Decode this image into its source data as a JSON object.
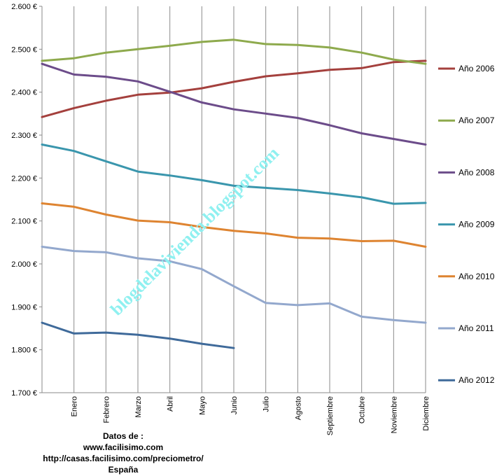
{
  "chart_data": {
    "type": "line",
    "categories": [
      "",
      "Enero",
      "Febrero",
      "Marzo",
      "Abril",
      "Mayo",
      "Junio",
      "Julio",
      "Agosto",
      "Septiembre",
      "Octubre",
      "Noviembre",
      "Diciembre"
    ],
    "y_ticks": [
      "1.700 €",
      "1.800 €",
      "1.900 €",
      "2.000 €",
      "2.100 €",
      "2.200 €",
      "2.300 €",
      "2.400 €",
      "2.500 €",
      "2.600 €"
    ],
    "ylim": [
      1700,
      2600
    ],
    "grid": "vertical",
    "legend_position": "right",
    "series": [
      {
        "name": "Año 2006",
        "color": "#a4403d",
        "values": [
          2342,
          2363,
          2380,
          2394,
          2399,
          2409,
          2424,
          2437,
          2444,
          2452,
          2456,
          2470,
          2473
        ]
      },
      {
        "name": "Año 2007",
        "color": "#8eaa4d",
        "values": [
          2473,
          2479,
          2492,
          2500,
          2508,
          2517,
          2522,
          2512,
          2510,
          2504,
          2492,
          2476,
          2466
        ]
      },
      {
        "name": "Año 2008",
        "color": "#6c4c8a",
        "values": [
          2466,
          2441,
          2436,
          2425,
          2401,
          2376,
          2360,
          2350,
          2340,
          2323,
          2304,
          2291,
          2278
        ]
      },
      {
        "name": "Año 2009",
        "color": "#3a96ad",
        "values": [
          2278,
          2263,
          2239,
          2215,
          2206,
          2195,
          2182,
          2177,
          2172,
          2164,
          2155,
          2140,
          2142
        ]
      },
      {
        "name": "Año 2010",
        "color": "#de8431",
        "values": [
          2141,
          2133,
          2115,
          2101,
          2097,
          2086,
          2077,
          2071,
          2061,
          2059,
          2053,
          2054,
          2040
        ]
      },
      {
        "name": "Año 2011",
        "color": "#93a8cd",
        "values": [
          2040,
          2030,
          2027,
          2013,
          2006,
          1988,
          1948,
          1909,
          1904,
          1908,
          1877,
          1869,
          1863
        ]
      },
      {
        "name": "Año 2012",
        "color": "#3f6a9a",
        "values": [
          1863,
          1838,
          1840,
          1835,
          1826,
          1814,
          1804,
          null,
          null,
          null,
          null,
          null,
          null
        ]
      }
    ]
  },
  "source_note": {
    "line1": "Datos de :",
    "line2": "www.facilisimo.com",
    "line3": "http://casas.facilisimo.com/preciometro/",
    "line4": "España"
  },
  "watermark": "blogdelavivienda.blogspot.com"
}
